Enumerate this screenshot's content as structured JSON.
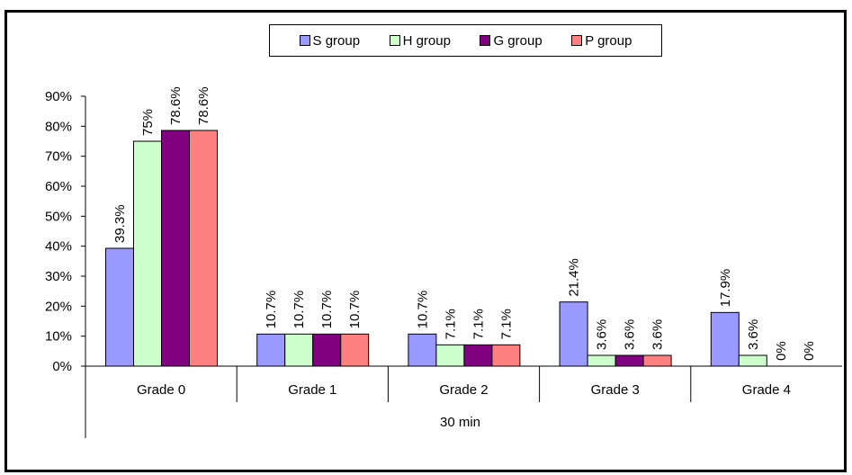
{
  "chart_data": {
    "type": "bar",
    "categories": [
      "Grade 0",
      "Grade 1",
      "Grade 2",
      "Grade 3",
      "Grade 4"
    ],
    "group_label": "30 min",
    "series": [
      {
        "name": "S group",
        "color": "#9999ff",
        "values": [
          39.3,
          10.7,
          10.7,
          21.4,
          17.9
        ],
        "labels": [
          "39.3%",
          "10.7%",
          "10.7%",
          "21.4%",
          "17.9%"
        ]
      },
      {
        "name": "H group",
        "color": "#ccffcc",
        "values": [
          75,
          10.7,
          7.1,
          3.6,
          3.6
        ],
        "labels": [
          "75%",
          "10.7%",
          "7.1%",
          "3.6%",
          "3.6%"
        ]
      },
      {
        "name": "G group",
        "color": "#800080",
        "values": [
          78.6,
          10.7,
          7.1,
          3.6,
          0
        ],
        "labels": [
          "78.6%",
          "10.7%",
          "7.1%",
          "3.6%",
          "0%"
        ]
      },
      {
        "name": "P group",
        "color": "#ff8080",
        "values": [
          78.6,
          10.7,
          7.1,
          3.6,
          0
        ],
        "labels": [
          "78.6%",
          "10.7%",
          "7.1%",
          "3.6%",
          "0%"
        ]
      }
    ],
    "yticks": [
      "0%",
      "10%",
      "20%",
      "30%",
      "40%",
      "50%",
      "60%",
      "70%",
      "80%",
      "90%"
    ],
    "ylim": [
      0,
      90
    ],
    "legend_position": "top-center",
    "grid": false
  }
}
